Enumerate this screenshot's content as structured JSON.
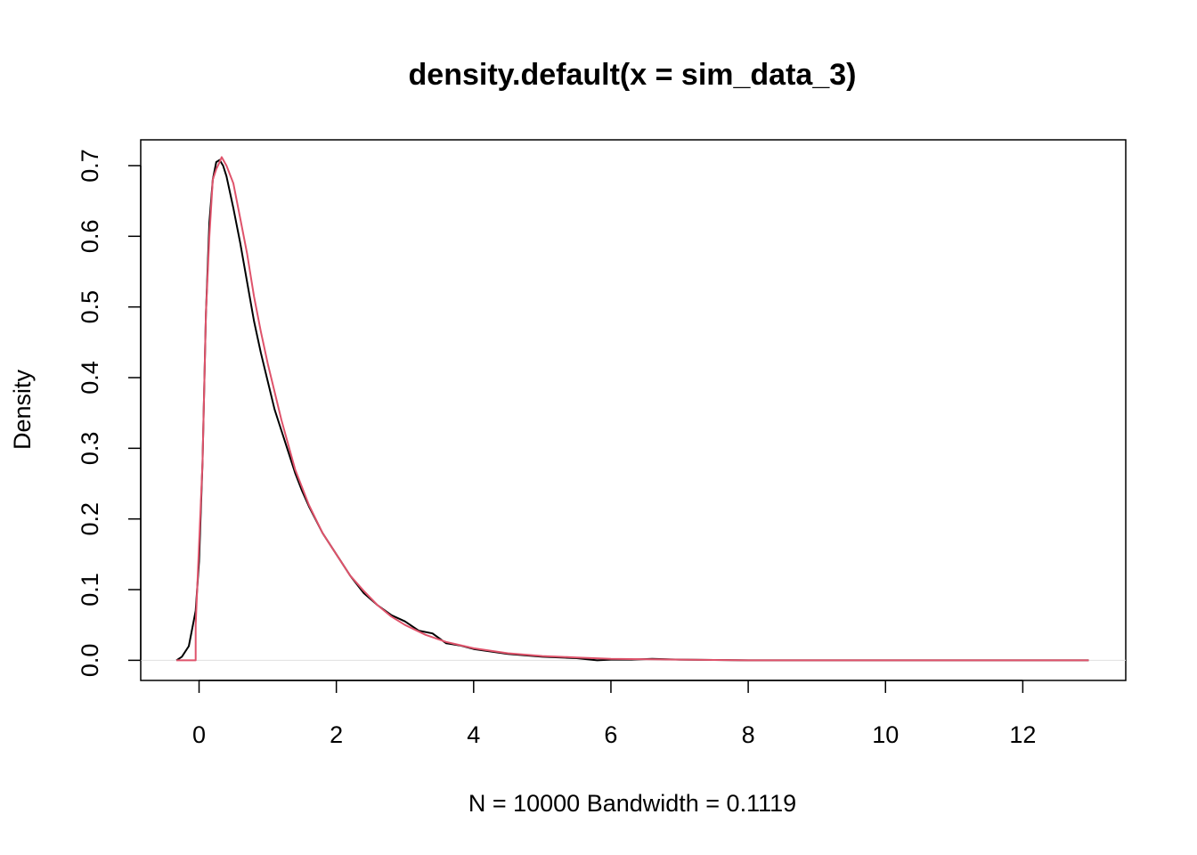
{
  "chart_data": {
    "type": "line",
    "title": "density.default(x = sim_data_3)",
    "xlabel": "N = 10000   Bandwidth = 0.1119",
    "ylabel": "Density",
    "xlim": [
      -0.85,
      13.5
    ],
    "ylim": [
      -0.0285,
      0.7365
    ],
    "x_ticks": [
      0,
      2,
      4,
      6,
      8,
      10,
      12
    ],
    "y_ticks": [
      0.0,
      0.1,
      0.2,
      0.3,
      0.4,
      0.5,
      0.6,
      0.7
    ],
    "x_tick_labels": [
      "0",
      "2",
      "4",
      "6",
      "8",
      "10",
      "12"
    ],
    "y_tick_labels": [
      "0.0",
      "0.1",
      "0.2",
      "0.3",
      "0.4",
      "0.5",
      "0.6",
      "0.7"
    ],
    "zero_line": true,
    "series": [
      {
        "color": "#000000",
        "x": [
          -0.33,
          -0.25,
          -0.15,
          -0.05,
          0.0,
          0.05,
          0.1,
          0.15,
          0.2,
          0.25,
          0.3,
          0.35,
          0.4,
          0.5,
          0.6,
          0.7,
          0.8,
          0.9,
          1.0,
          1.1,
          1.2,
          1.3,
          1.4,
          1.5,
          1.6,
          1.8,
          2.0,
          2.2,
          2.4,
          2.6,
          2.8,
          3.0,
          3.2,
          3.4,
          3.6,
          3.8,
          4.0,
          4.5,
          5.0,
          5.5,
          5.8,
          6.0,
          6.3,
          6.6,
          7.0,
          8.0,
          9.0,
          10.0,
          11.0,
          12.0,
          12.7,
          12.96
        ],
        "y": [
          0.0,
          0.005,
          0.02,
          0.07,
          0.14,
          0.28,
          0.49,
          0.62,
          0.68,
          0.705,
          0.708,
          0.7,
          0.685,
          0.64,
          0.59,
          0.535,
          0.48,
          0.435,
          0.395,
          0.355,
          0.325,
          0.295,
          0.265,
          0.24,
          0.218,
          0.18,
          0.15,
          0.12,
          0.095,
          0.078,
          0.064,
          0.055,
          0.042,
          0.038,
          0.024,
          0.021,
          0.016,
          0.009,
          0.005,
          0.003,
          0.0,
          0.001,
          0.001,
          0.002,
          0.001,
          0.0,
          0.0,
          0.0,
          0.0,
          0.0,
          0.0,
          0.0
        ]
      },
      {
        "color": "#DF536B",
        "x": [
          -0.33,
          -0.05,
          -0.05,
          0.05,
          0.1,
          0.15,
          0.2,
          0.25,
          0.3,
          0.33,
          0.4,
          0.5,
          0.6,
          0.7,
          0.8,
          0.9,
          1.0,
          1.2,
          1.4,
          1.6,
          1.8,
          2.0,
          2.2,
          2.4,
          2.6,
          2.8,
          3.0,
          3.3,
          3.6,
          4.0,
          4.5,
          5.0,
          5.5,
          6.0,
          7.0,
          8.0,
          9.0,
          10.0,
          11.0,
          12.0,
          12.96
        ],
        "y": [
          0.0,
          0.0,
          0.05,
          0.28,
          0.49,
          0.6,
          0.68,
          0.695,
          0.705,
          0.712,
          0.7,
          0.675,
          0.625,
          0.575,
          0.515,
          0.465,
          0.42,
          0.34,
          0.27,
          0.22,
          0.18,
          0.15,
          0.12,
          0.098,
          0.078,
          0.062,
          0.05,
          0.036,
          0.026,
          0.017,
          0.01,
          0.006,
          0.004,
          0.002,
          0.001,
          0.0,
          0.0,
          0.0,
          0.0,
          0.0,
          0.0
        ]
      }
    ]
  }
}
